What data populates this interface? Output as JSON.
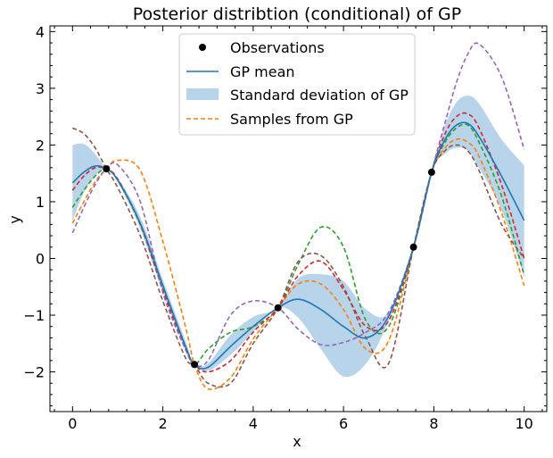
{
  "chart_data": {
    "type": "line",
    "title": "Posterior distribtion (conditional) of GP",
    "xlabel": "x",
    "ylabel": "y",
    "xlim": [
      -0.5,
      10.5
    ],
    "ylim": [
      -2.7,
      4.1
    ],
    "xticks": [
      0,
      2,
      4,
      6,
      8,
      10
    ],
    "xtick_labels": [
      "0",
      "2",
      "4",
      "6",
      "8",
      "10"
    ],
    "yticks": [
      -2,
      -1,
      0,
      1,
      2,
      3,
      4
    ],
    "ytick_labels": [
      "−2",
      "−1",
      "0",
      "1",
      "2",
      "3",
      "4"
    ],
    "grid": false,
    "legend_position": "top-center",
    "legend": {
      "observations": "Observations",
      "mean": "GP mean",
      "std": "Standard deviation of GP",
      "samples": "Samples from GP"
    },
    "colors": {
      "mean": "#1f77b4",
      "band": "#b8d4ea",
      "samples_legend": "#ff7f0e",
      "observations": "#000000"
    },
    "observations": {
      "x": [
        0.75,
        2.7,
        4.55,
        7.55,
        7.95
      ],
      "y": [
        1.58,
        -1.87,
        -0.87,
        0.2,
        1.52
      ]
    },
    "x": [
      0,
      0.25,
      0.5,
      0.75,
      1.0,
      1.5,
      2.0,
      2.5,
      2.7,
      3.0,
      3.5,
      4.0,
      4.55,
      5.0,
      5.5,
      6.0,
      6.5,
      7.0,
      7.55,
      7.95,
      8.25,
      8.5,
      8.75,
      9.0,
      9.5,
      10.0
    ],
    "mean": [
      1.33,
      1.52,
      1.63,
      1.58,
      1.38,
      0.62,
      -0.48,
      -1.55,
      -1.87,
      -1.92,
      -1.55,
      -1.2,
      -0.87,
      -0.72,
      -0.9,
      -1.2,
      -1.4,
      -1.02,
      0.2,
      1.52,
      2.1,
      2.35,
      2.38,
      2.15,
      1.45,
      0.67
    ],
    "std_lower": [
      0.66,
      1.16,
      1.45,
      1.58,
      1.35,
      0.52,
      -0.6,
      -1.62,
      -1.87,
      -1.98,
      -1.7,
      -1.3,
      -0.87,
      -1.05,
      -1.6,
      -2.08,
      -1.85,
      -1.1,
      0.2,
      1.52,
      1.85,
      1.95,
      1.9,
      1.6,
      0.85,
      -0.32
    ],
    "std_upper": [
      2.0,
      2.02,
      1.84,
      1.58,
      1.42,
      0.73,
      -0.37,
      -1.45,
      -1.87,
      -1.85,
      -1.35,
      -1.03,
      -0.87,
      -0.35,
      -0.28,
      -0.4,
      -0.9,
      -0.95,
      0.2,
      1.52,
      2.35,
      2.75,
      2.87,
      2.73,
      2.1,
      1.64
    ],
    "samples": [
      {
        "color": "#ff7f0e",
        "y": [
          0.62,
          1.0,
          1.35,
          1.58,
          1.73,
          1.55,
          0.3,
          -1.2,
          -1.87,
          -2.3,
          -2.1,
          -1.42,
          -0.87,
          -0.45,
          -0.45,
          -0.9,
          -1.6,
          -1.45,
          0.2,
          1.52,
          1.95,
          2.1,
          2.05,
          1.8,
          0.8,
          -0.48
        ]
      },
      {
        "color": "#2ca02c",
        "y": [
          0.9,
          1.2,
          1.45,
          1.58,
          1.38,
          0.6,
          -0.5,
          -1.55,
          -1.87,
          -1.6,
          -1.3,
          -1.2,
          -0.87,
          -0.1,
          0.55,
          0.2,
          -1.1,
          -1.2,
          0.2,
          1.52,
          2.05,
          2.3,
          2.35,
          2.05,
          1.1,
          -0.3
        ]
      },
      {
        "color": "#d62728",
        "y": [
          1.2,
          1.45,
          1.6,
          1.58,
          1.4,
          0.6,
          -0.55,
          -1.6,
          -1.87,
          -2.0,
          -1.8,
          -1.3,
          -0.87,
          -0.3,
          -0.05,
          -0.55,
          -1.2,
          -1.1,
          0.2,
          1.52,
          2.2,
          2.5,
          2.55,
          2.3,
          1.3,
          0.0
        ]
      },
      {
        "color": "#9467bd",
        "y": [
          0.45,
          0.9,
          1.3,
          1.58,
          1.65,
          1.0,
          -0.6,
          -1.6,
          -1.87,
          -1.8,
          -1.0,
          -0.75,
          -0.87,
          -1.25,
          -1.52,
          -1.48,
          -1.3,
          -0.95,
          0.2,
          1.52,
          2.4,
          3.1,
          3.6,
          3.78,
          3.2,
          1.92
        ]
      },
      {
        "color": "#8c564b",
        "y": [
          2.3,
          2.2,
          1.95,
          1.58,
          1.25,
          0.4,
          -0.75,
          -1.75,
          -1.87,
          -2.2,
          -2.2,
          -1.5,
          -0.87,
          -0.05,
          0.05,
          -0.5,
          -1.4,
          -1.85,
          0.2,
          1.52,
          1.9,
          2.0,
          1.9,
          1.55,
          0.6,
          0.0
        ]
      }
    ]
  }
}
